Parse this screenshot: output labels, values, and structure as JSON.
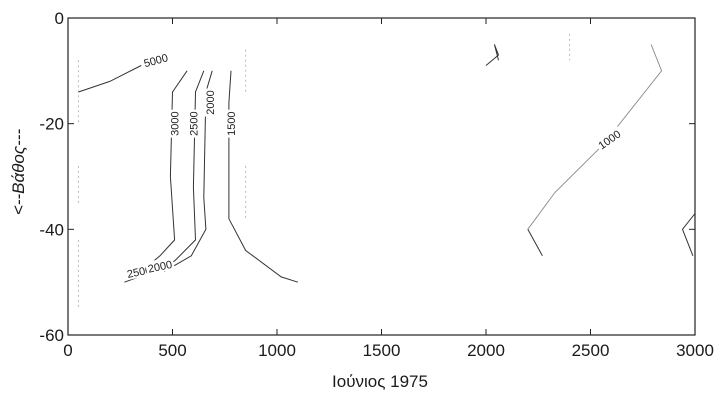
{
  "chart_data": {
    "type": "contour",
    "xlabel": "Ιούνιος 1975",
    "ylabel": "<--Βάθος---",
    "xlim": [
      0,
      3000
    ],
    "ylim": [
      -60,
      0
    ],
    "x_ticks": [
      "0",
      "500",
      "1000",
      "1500",
      "2000",
      "2500",
      "3000"
    ],
    "x_tick_values": [
      0,
      500,
      1000,
      1500,
      2000,
      2500,
      3000
    ],
    "y_ticks": [
      "0",
      "-20",
      "-40",
      "-60"
    ],
    "y_tick_values": [
      0,
      -20,
      -40,
      -60
    ],
    "grid": false,
    "contours": [
      {
        "level": "5000",
        "points": [
          [
            50,
            -14
          ],
          [
            200,
            -12
          ],
          [
            350,
            -9
          ]
        ],
        "label_at": [
          420,
          -8
        ],
        "label_angle": -15
      },
      {
        "level": "3000",
        "points": [
          [
            570,
            -10
          ],
          [
            500,
            -14
          ],
          [
            490,
            -30
          ],
          [
            510,
            -42
          ],
          [
            440,
            -45
          ],
          [
            380,
            -47
          ],
          [
            290,
            -48
          ]
        ],
        "label_at": [
          510,
          -20
        ],
        "label_angle": -90
      },
      {
        "level": "2500",
        "points": [
          [
            650,
            -10
          ],
          [
            610,
            -14
          ],
          [
            600,
            -32
          ],
          [
            610,
            -42
          ],
          [
            510,
            -46
          ],
          [
            410,
            -48
          ],
          [
            270,
            -50
          ]
        ],
        "label_at": [
          600,
          -20
        ],
        "label_angle": -90
      },
      {
        "level": "2000",
        "points": [
          [
            690,
            -10
          ],
          [
            660,
            -14
          ],
          [
            650,
            -34
          ],
          [
            660,
            -40
          ],
          [
            590,
            -45
          ],
          [
            460,
            -48
          ]
        ],
        "label_at": [
          680,
          -16
        ],
        "label_angle": -90
      },
      {
        "level": "1500",
        "points": [
          [
            780,
            -10
          ],
          [
            770,
            -16
          ],
          [
            770,
            -38
          ],
          [
            850,
            -44
          ],
          [
            1020,
            -49
          ],
          [
            1100,
            -50
          ]
        ],
        "label_at": [
          780,
          -20
        ],
        "label_angle": -90
      },
      {
        "level": "1000",
        "points": [
          [
            2200,
            -40
          ],
          [
            2330,
            -33
          ],
          [
            2560,
            -24
          ],
          [
            2720,
            -16
          ],
          [
            2840,
            -10
          ],
          [
            2790,
            -5
          ]
        ],
        "label_at": [
          2590,
          -23
        ],
        "label_angle": -35
      },
      {
        "level": "",
        "points": [
          [
            2000,
            -9
          ],
          [
            2060,
            -7
          ],
          [
            2040,
            -5
          ],
          [
            2060,
            -8
          ]
        ],
        "label_at": null,
        "label_angle": 0
      },
      {
        "level": "",
        "points": [
          [
            2200,
            -40
          ],
          [
            2270,
            -45
          ]
        ],
        "label_at": null,
        "label_angle": 0
      },
      {
        "level": "",
        "points": [
          [
            3000,
            -37
          ],
          [
            2940,
            -40
          ],
          [
            2990,
            -45
          ]
        ],
        "label_at": null,
        "label_angle": 0
      }
    ],
    "extra_labels": [
      {
        "text": "2500",
        "at": [
          340,
          -48
        ],
        "angle": -12
      },
      {
        "text": "2000",
        "at": [
          440,
          -47
        ],
        "angle": -12
      }
    ]
  }
}
